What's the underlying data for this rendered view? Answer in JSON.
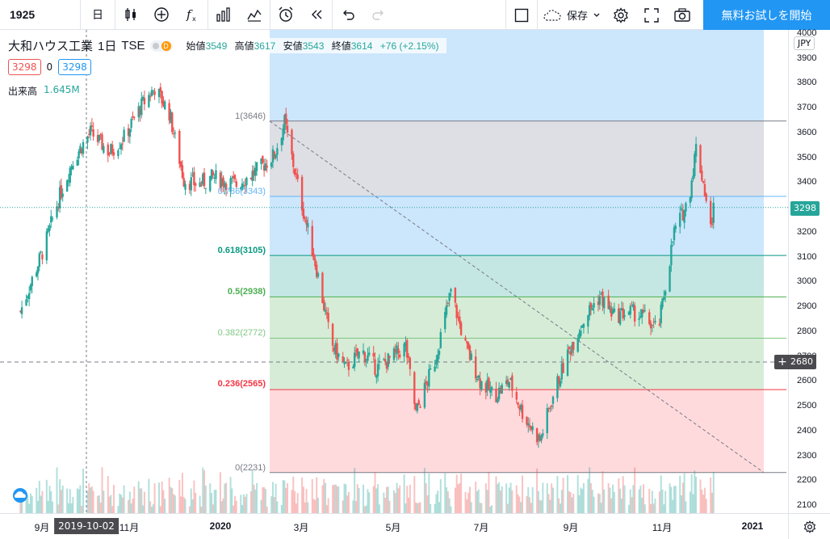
{
  "toolbar": {
    "symbol": "1925",
    "interval": "日",
    "save_label": "保存",
    "cta_label": "無料お試しを開始"
  },
  "legend": {
    "name": "大和ハウス工業",
    "interval": "1日",
    "exchange": "TSE",
    "status_badge": "D",
    "open_label": "始値",
    "open": "3549",
    "high_label": "高値",
    "high": "3617",
    "low_label": "安値",
    "low": "3543",
    "close_label": "終値",
    "close": "3614",
    "change": "+76 (+2.15%)",
    "bid": "3298",
    "spread": "0",
    "ask": "3298",
    "volume_label": "出来高",
    "volume": "1.645M"
  },
  "fib_labels": {
    "l100": "1(3646)",
    "l786": "0.786(3343)",
    "l618": "0.618(3105)",
    "l500": "0.5(2938)",
    "l382": "0.382(2772)",
    "l236": "0.236(2565)",
    "l0": "0(2231)"
  },
  "price_axis": {
    "currency": "JPY",
    "ticks": [
      "4000",
      "3900",
      "3800",
      "3700",
      "3600",
      "3500",
      "3400",
      "3300",
      "3200",
      "3100",
      "3000",
      "2900",
      "2800",
      "2700",
      "2600",
      "2500",
      "2400",
      "2300",
      "2200",
      "2100"
    ],
    "last_price": "3298",
    "crosshair_price": "2680"
  },
  "time_axis": {
    "ticks": [
      "9月",
      "11月",
      "2020",
      "3月",
      "5月",
      "7月",
      "9月",
      "11月",
      "2021"
    ],
    "crosshair_date": "2019-10-02"
  },
  "events": [
    {
      "type": "E"
    },
    {
      "type": "D"
    },
    {
      "type": "E"
    },
    {
      "type": "E"
    },
    {
      "type": "D"
    },
    {
      "type": "E"
    },
    {
      "type": "E"
    },
    {
      "type": "D"
    },
    {
      "type": "E"
    }
  ],
  "colors": {
    "up": "#26a69a",
    "down": "#ef5350",
    "accent": "#2196f3",
    "fib_top": "#d1d4dc",
    "fib_786": "#bbdefb",
    "fib_618": "#b2dfdb",
    "fib_500": "#c8e6c9",
    "fib_382": "#c8e6c9",
    "fib_236": "#ffcdd2"
  },
  "chart_data": {
    "type": "candlestick",
    "symbol": "1925",
    "ylim": [
      2100,
      4000
    ],
    "points": [
      [
        "2019-08-15",
        2880
      ],
      [
        "2019-09-01",
        3150
      ],
      [
        "2019-09-10",
        3330
      ],
      [
        "2019-09-20",
        3490
      ],
      [
        "2019-10-02",
        3600
      ],
      [
        "2019-10-15",
        3520
      ],
      [
        "2019-10-25",
        3580
      ],
      [
        "2019-11-05",
        3700
      ],
      [
        "2019-11-15",
        3780
      ],
      [
        "2019-11-25",
        3680
      ],
      [
        "2019-12-05",
        3410
      ],
      [
        "2019-12-15",
        3390
      ],
      [
        "2019-12-25",
        3420
      ],
      [
        "2020-01-10",
        3390
      ],
      [
        "2020-01-25",
        3450
      ],
      [
        "2020-02-05",
        3510
      ],
      [
        "2020-02-12",
        3640
      ],
      [
        "2020-02-22",
        3360
      ],
      [
        "2020-03-05",
        3050
      ],
      [
        "2020-03-15",
        2750
      ],
      [
        "2020-03-25",
        2650
      ],
      [
        "2020-04-05",
        2720
      ],
      [
        "2020-04-15",
        2650
      ],
      [
        "2020-04-25",
        2690
      ],
      [
        "2020-05-05",
        2740
      ],
      [
        "2020-05-12",
        2470
      ],
      [
        "2020-05-25",
        2680
      ],
      [
        "2020-06-05",
        2960
      ],
      [
        "2020-06-15",
        2740
      ],
      [
        "2020-06-25",
        2600
      ],
      [
        "2020-07-05",
        2540
      ],
      [
        "2020-07-15",
        2600
      ],
      [
        "2020-07-25",
        2460
      ],
      [
        "2020-08-05",
        2360
      ],
      [
        "2020-08-15",
        2560
      ],
      [
        "2020-08-25",
        2720
      ],
      [
        "2020-09-05",
        2860
      ],
      [
        "2020-09-15",
        2940
      ],
      [
        "2020-09-25",
        2860
      ],
      [
        "2020-10-05",
        2880
      ],
      [
        "2020-10-15",
        2860
      ],
      [
        "2020-10-25",
        2800
      ],
      [
        "2020-11-05",
        3200
      ],
      [
        "2020-11-15",
        3330
      ],
      [
        "2020-11-20",
        3540
      ],
      [
        "2020-11-25",
        3400
      ],
      [
        "2020-11-30",
        3210
      ],
      [
        "2020-12-02",
        3298
      ]
    ],
    "fibonacci": [
      {
        "level": 1,
        "price": 3646
      },
      {
        "level": 0.786,
        "price": 3343
      },
      {
        "level": 0.618,
        "price": 3105
      },
      {
        "level": 0.5,
        "price": 2938
      },
      {
        "level": 0.382,
        "price": 2772
      },
      {
        "level": 0.236,
        "price": 2565
      },
      {
        "level": 0,
        "price": 2231
      }
    ]
  }
}
